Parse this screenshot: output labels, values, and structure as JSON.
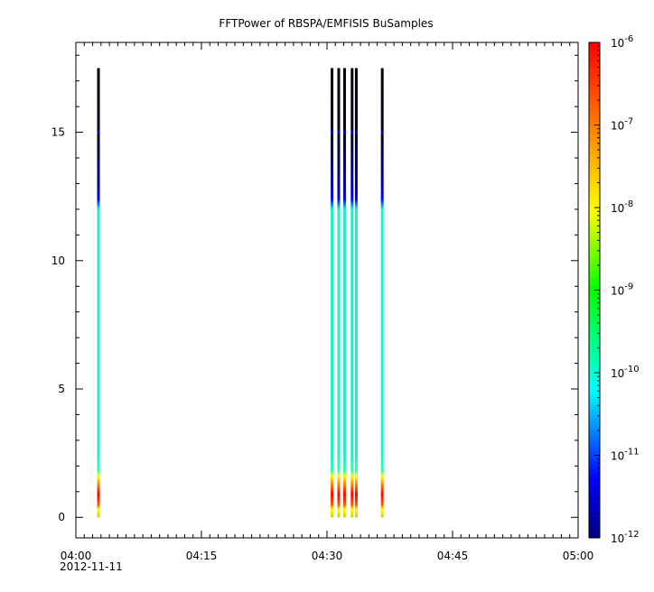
{
  "chart_data": {
    "type": "heatmap",
    "title": "FFTPower of RBSPA/EMFISIS  BuSamples",
    "xlabel": "",
    "ylabel": "",
    "x_ticks": [
      {
        "minutes": 0,
        "label": "04:00"
      },
      {
        "minutes": 15,
        "label": "04:15"
      },
      {
        "minutes": 30,
        "label": "04:30"
      },
      {
        "minutes": 45,
        "label": "04:45"
      },
      {
        "minutes": 60,
        "label": "05:00"
      }
    ],
    "x_date_label": "2012-11-11",
    "xlim_minutes": [
      0,
      60
    ],
    "y_ticks": [
      0,
      5,
      10,
      15
    ],
    "ylim": [
      -0.8,
      18.5
    ],
    "colorbar": {
      "scale": "log",
      "range_exp": [
        -12,
        -6
      ],
      "tick_exponents": [
        -6,
        -7,
        -8,
        -9,
        -10,
        -11,
        -12
      ],
      "tick_base": "10"
    },
    "columns_minutes": [
      2.7,
      30.6,
      31.4,
      32.1,
      33.0,
      33.5,
      36.6
    ],
    "columns_y_top": 17.5
  }
}
